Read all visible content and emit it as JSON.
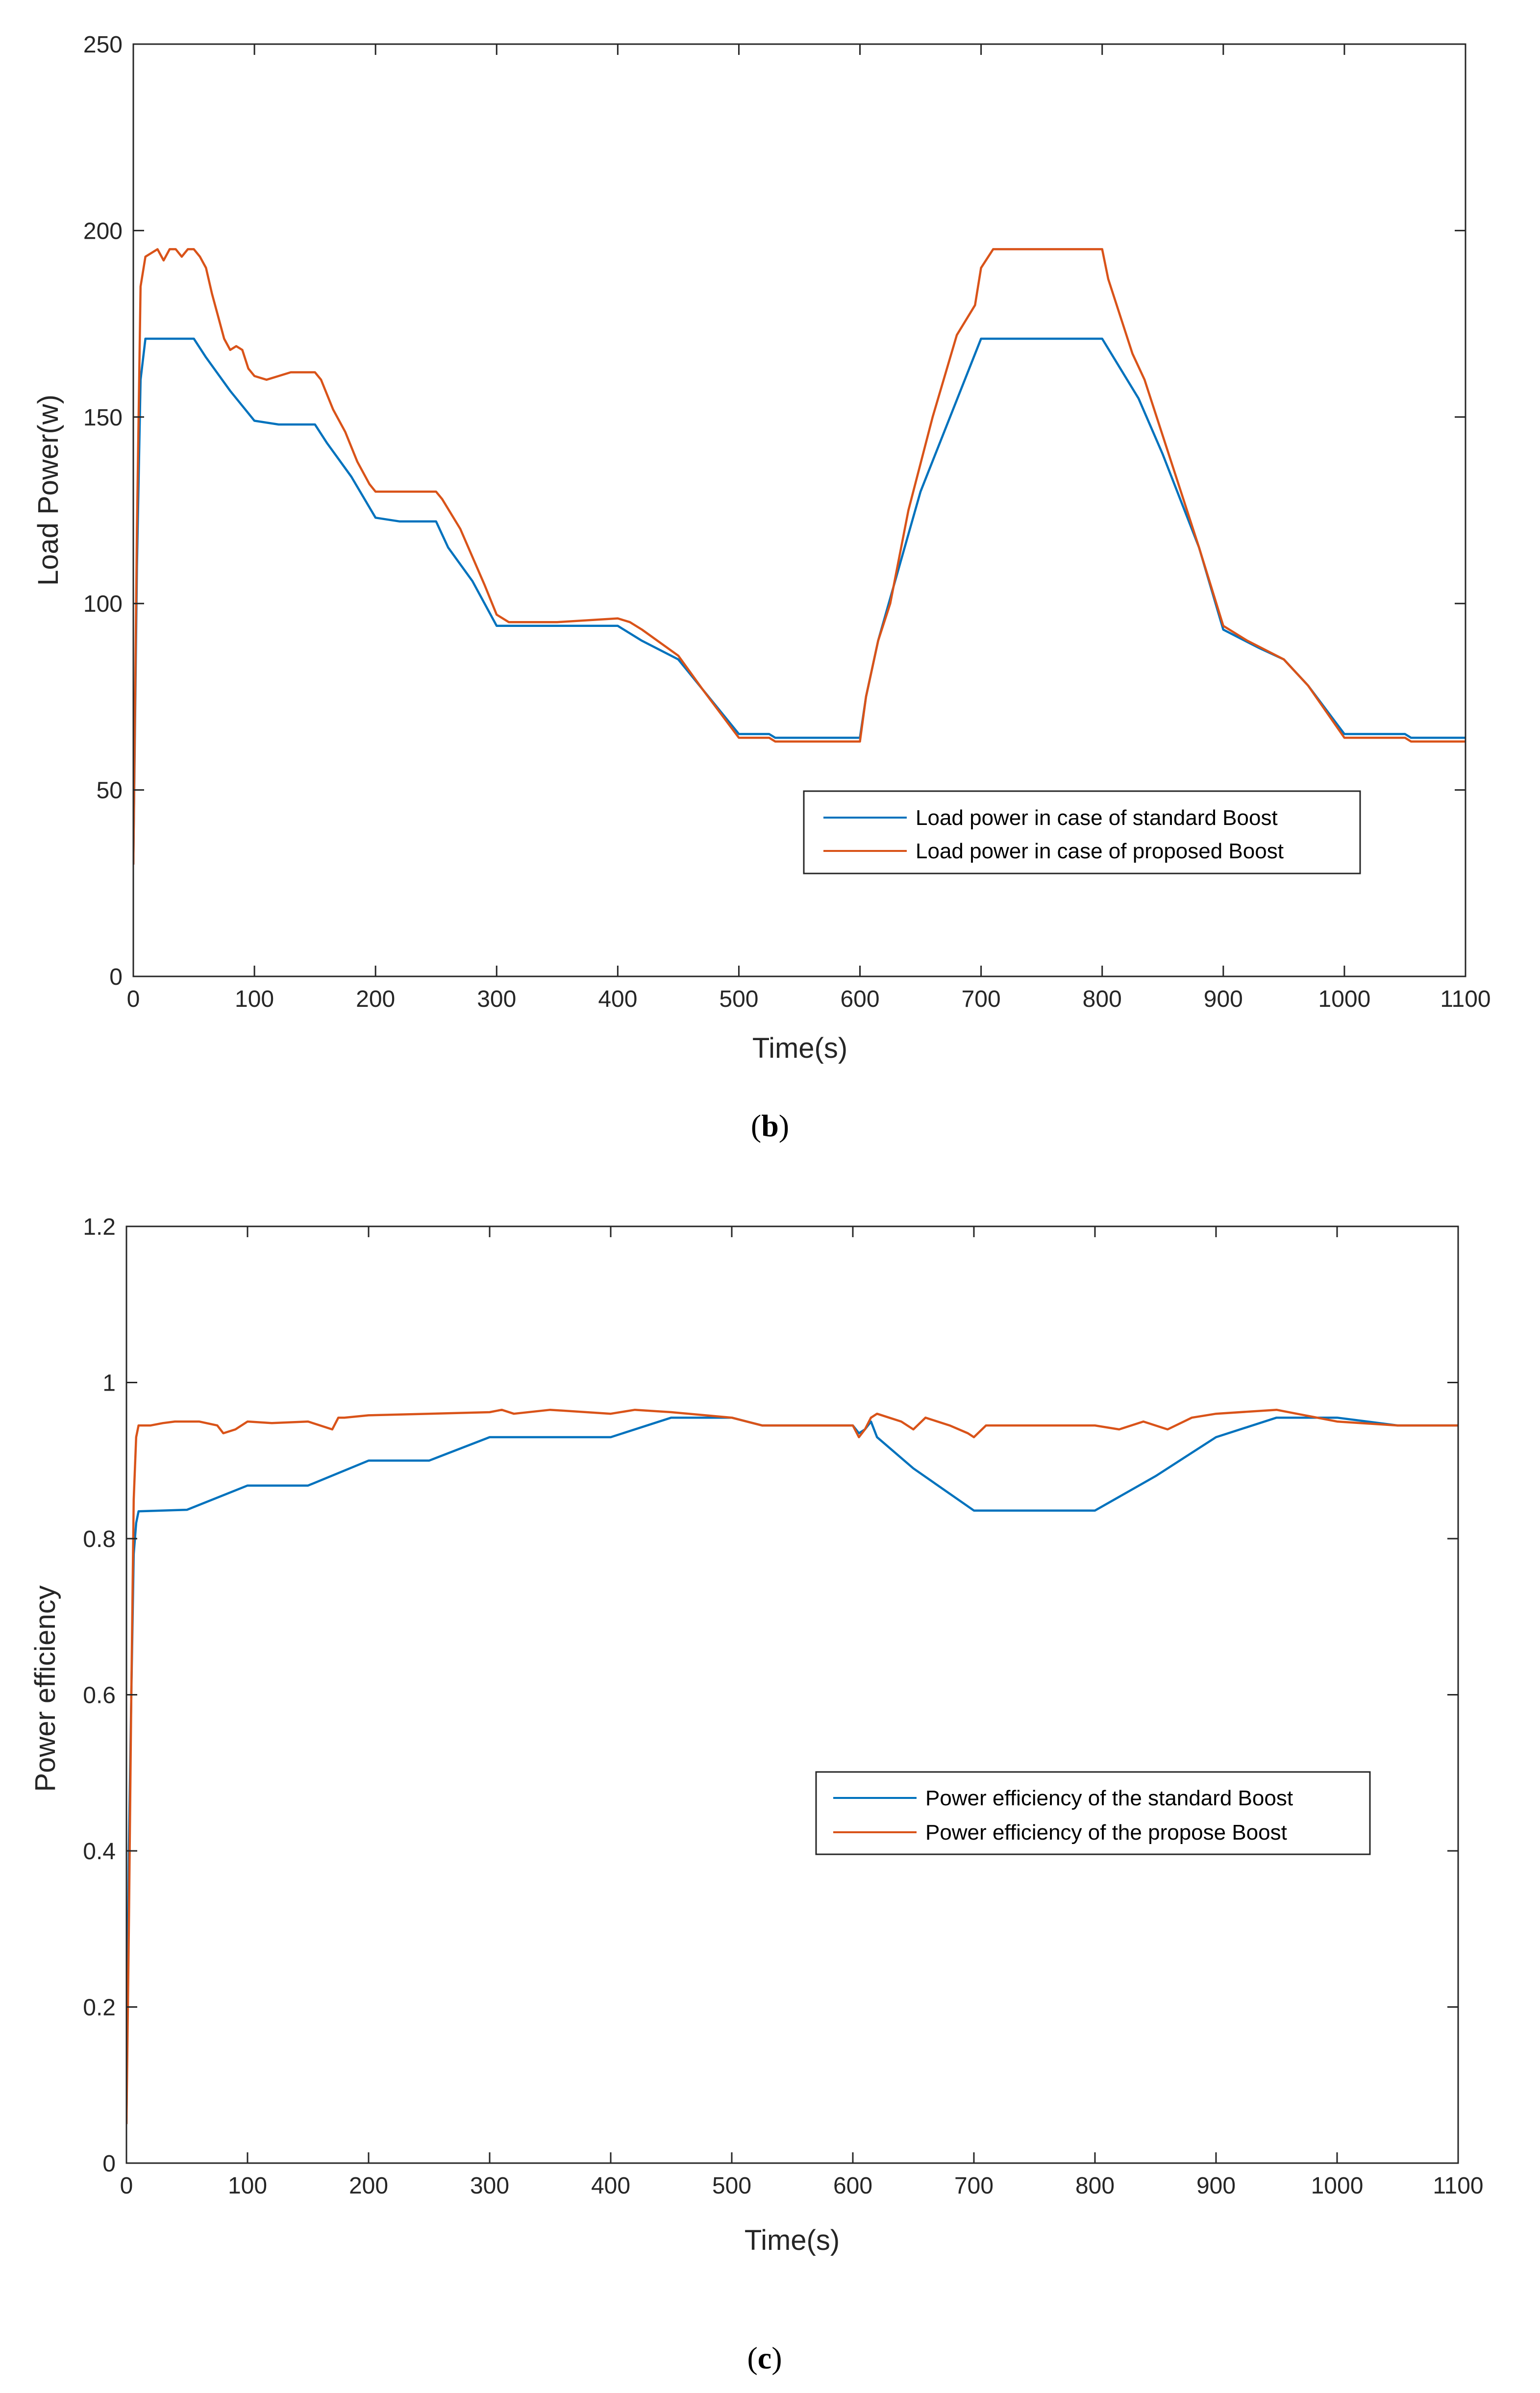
{
  "colors": {
    "standard": "#0072BD",
    "proposed": "#D95319",
    "axis": "#262626"
  },
  "chart_data": [
    {
      "type": "line",
      "caption": "b",
      "xlabel": "Time(s)",
      "ylabel": "Load Power(w)",
      "xlim": [
        0,
        1100
      ],
      "ylim": [
        0,
        250
      ],
      "xticks": [
        0,
        100,
        200,
        300,
        400,
        500,
        600,
        700,
        800,
        900,
        1000,
        1100
      ],
      "yticks": [
        0,
        50,
        100,
        150,
        200,
        250
      ],
      "legend_position": "lower-right",
      "series": [
        {
          "name": "Load power in case of standard Boost",
          "color_key": "standard",
          "x": [
            0,
            3,
            6,
            10,
            20,
            50,
            60,
            80,
            100,
            120,
            150,
            160,
            180,
            200,
            220,
            250,
            260,
            280,
            300,
            310,
            350,
            400,
            420,
            450,
            470,
            500,
            525,
            530,
            600,
            605,
            615,
            650,
            700,
            800,
            830,
            850,
            880,
            900,
            930,
            950,
            970,
            1000,
            1050,
            1055,
            1100
          ],
          "y": [
            30,
            110,
            160,
            171,
            171,
            171,
            166,
            157,
            149,
            148,
            148,
            143,
            134,
            123,
            122,
            122,
            115,
            106,
            94,
            94,
            94,
            94,
            90,
            85,
            77,
            65,
            65,
            64,
            64,
            75,
            90,
            130,
            171,
            171,
            155,
            140,
            115,
            93,
            88,
            85,
            78,
            65,
            65,
            64,
            64
          ]
        },
        {
          "name": "Load power in case of proposed Boost",
          "color_key": "proposed",
          "x": [
            0,
            3,
            6,
            10,
            15,
            20,
            25,
            30,
            35,
            40,
            45,
            50,
            55,
            60,
            65,
            70,
            75,
            80,
            85,
            90,
            95,
            100,
            110,
            120,
            130,
            150,
            155,
            165,
            175,
            185,
            195,
            200,
            205,
            250,
            255,
            270,
            290,
            300,
            310,
            320,
            350,
            400,
            410,
            420,
            450,
            470,
            500,
            525,
            530,
            600,
            605,
            615,
            625,
            640,
            660,
            680,
            695,
            700,
            710,
            750,
            800,
            805,
            815,
            825,
            835,
            845,
            860,
            880,
            900,
            920,
            950,
            970,
            1000,
            1050,
            1055,
            1100
          ],
          "y": [
            30,
            120,
            185,
            193,
            194,
            195,
            192,
            195,
            195,
            193,
            195,
            195,
            193,
            190,
            183,
            177,
            171,
            168,
            169,
            168,
            163,
            161,
            160,
            161,
            162,
            162,
            160,
            152,
            146,
            138,
            132,
            130,
            130,
            130,
            128,
            120,
            105,
            97,
            95,
            95,
            95,
            96,
            95,
            93,
            86,
            77,
            64,
            64,
            63,
            63,
            75,
            90,
            100,
            125,
            150,
            172,
            180,
            190,
            195,
            195,
            195,
            187,
            177,
            167,
            160,
            150,
            135,
            115,
            94,
            90,
            85,
            78,
            64,
            64,
            63,
            63
          ]
        }
      ]
    },
    {
      "type": "line",
      "caption": "c",
      "xlabel": "Time(s)",
      "ylabel": "Power efficiency",
      "xlim": [
        0,
        1100
      ],
      "ylim": [
        0,
        1.2
      ],
      "xticks": [
        0,
        100,
        200,
        300,
        400,
        500,
        600,
        700,
        800,
        900,
        1000,
        1100
      ],
      "yticks": [
        0,
        0.2,
        0.4,
        0.6,
        0.8,
        1,
        1.2
      ],
      "ytick_labels": [
        "0",
        "0.2",
        "0.4",
        "0.6",
        "0.8",
        "1",
        "1.2"
      ],
      "legend_position": "center-right",
      "series": [
        {
          "name": "Power efficiency of the standard Boost",
          "color_key": "standard",
          "x": [
            0,
            2,
            4,
            6,
            8,
            10,
            50,
            100,
            150,
            200,
            250,
            300,
            400,
            450,
            500,
            525,
            600,
            605,
            610,
            615,
            620,
            650,
            700,
            800,
            850,
            900,
            950,
            1000,
            1050,
            1100
          ],
          "y": [
            0.05,
            0.4,
            0.6,
            0.78,
            0.82,
            0.835,
            0.837,
            0.868,
            0.868,
            0.9,
            0.9,
            0.93,
            0.93,
            0.955,
            0.955,
            0.945,
            0.945,
            0.935,
            0.94,
            0.95,
            0.93,
            0.89,
            0.836,
            0.836,
            0.88,
            0.93,
            0.955,
            0.955,
            0.945,
            0.945
          ]
        },
        {
          "name": "Power efficiency of the propose Boost",
          "color_key": "proposed",
          "x": [
            0,
            2,
            4,
            6,
            8,
            10,
            20,
            30,
            40,
            60,
            75,
            80,
            90,
            100,
            120,
            150,
            160,
            170,
            175,
            180,
            200,
            250,
            300,
            310,
            320,
            350,
            400,
            420,
            450,
            500,
            525,
            600,
            605,
            610,
            615,
            620,
            630,
            640,
            650,
            660,
            680,
            695,
            700,
            710,
            750,
            800,
            820,
            840,
            860,
            880,
            900,
            950,
            1000,
            1050,
            1100
          ],
          "y": [
            0.05,
            0.3,
            0.6,
            0.85,
            0.93,
            0.945,
            0.945,
            0.948,
            0.95,
            0.95,
            0.945,
            0.935,
            0.94,
            0.95,
            0.948,
            0.95,
            0.945,
            0.94,
            0.955,
            0.955,
            0.958,
            0.96,
            0.962,
            0.965,
            0.96,
            0.965,
            0.96,
            0.965,
            0.962,
            0.955,
            0.945,
            0.945,
            0.93,
            0.94,
            0.955,
            0.96,
            0.955,
            0.95,
            0.94,
            0.955,
            0.945,
            0.935,
            0.93,
            0.945,
            0.945,
            0.945,
            0.94,
            0.95,
            0.94,
            0.955,
            0.96,
            0.965,
            0.95,
            0.945,
            0.945
          ]
        }
      ]
    }
  ]
}
